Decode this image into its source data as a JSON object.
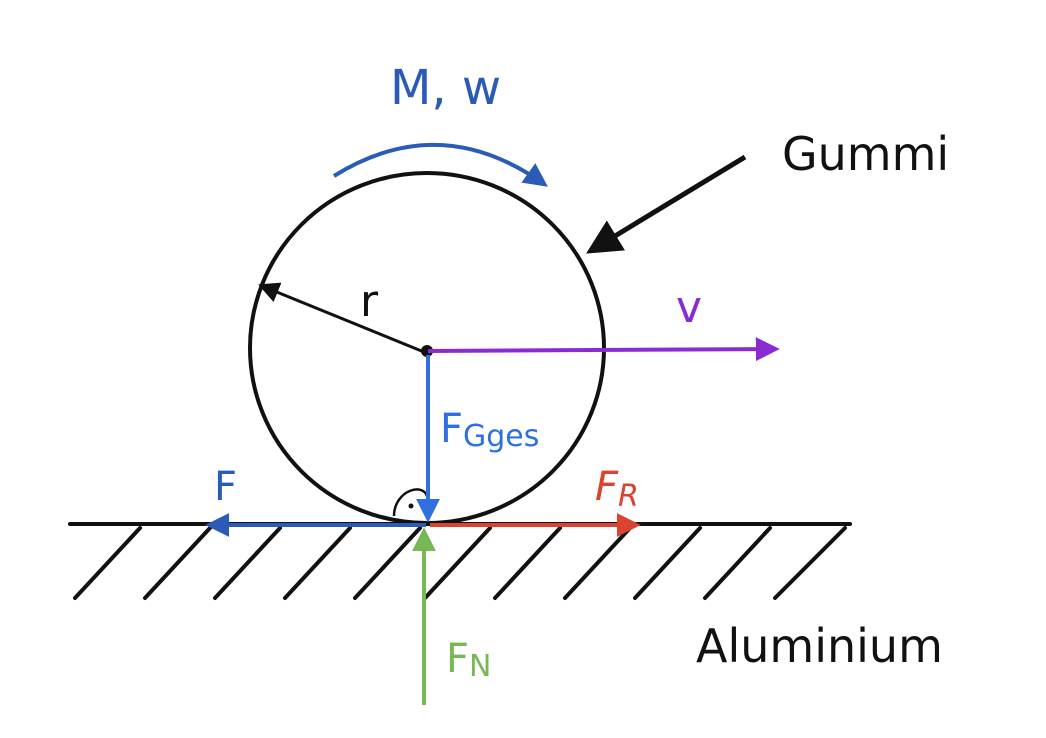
{
  "labels": {
    "moment": "M, w",
    "material_wheel": "Gummi",
    "radius": "r",
    "velocity": "v",
    "weight": "F",
    "weight_sub": "Gges",
    "force": "F",
    "friction": "F",
    "friction_sub": "R",
    "normal": "F",
    "normal_sub": "N",
    "material_ground": "Aluminium"
  },
  "colors": {
    "black": "#111111",
    "blue": "#2a5bb5",
    "bright_blue": "#2f6fe0",
    "purple": "#8a2bd1",
    "red": "#d9432f",
    "green": "#78b854"
  }
}
